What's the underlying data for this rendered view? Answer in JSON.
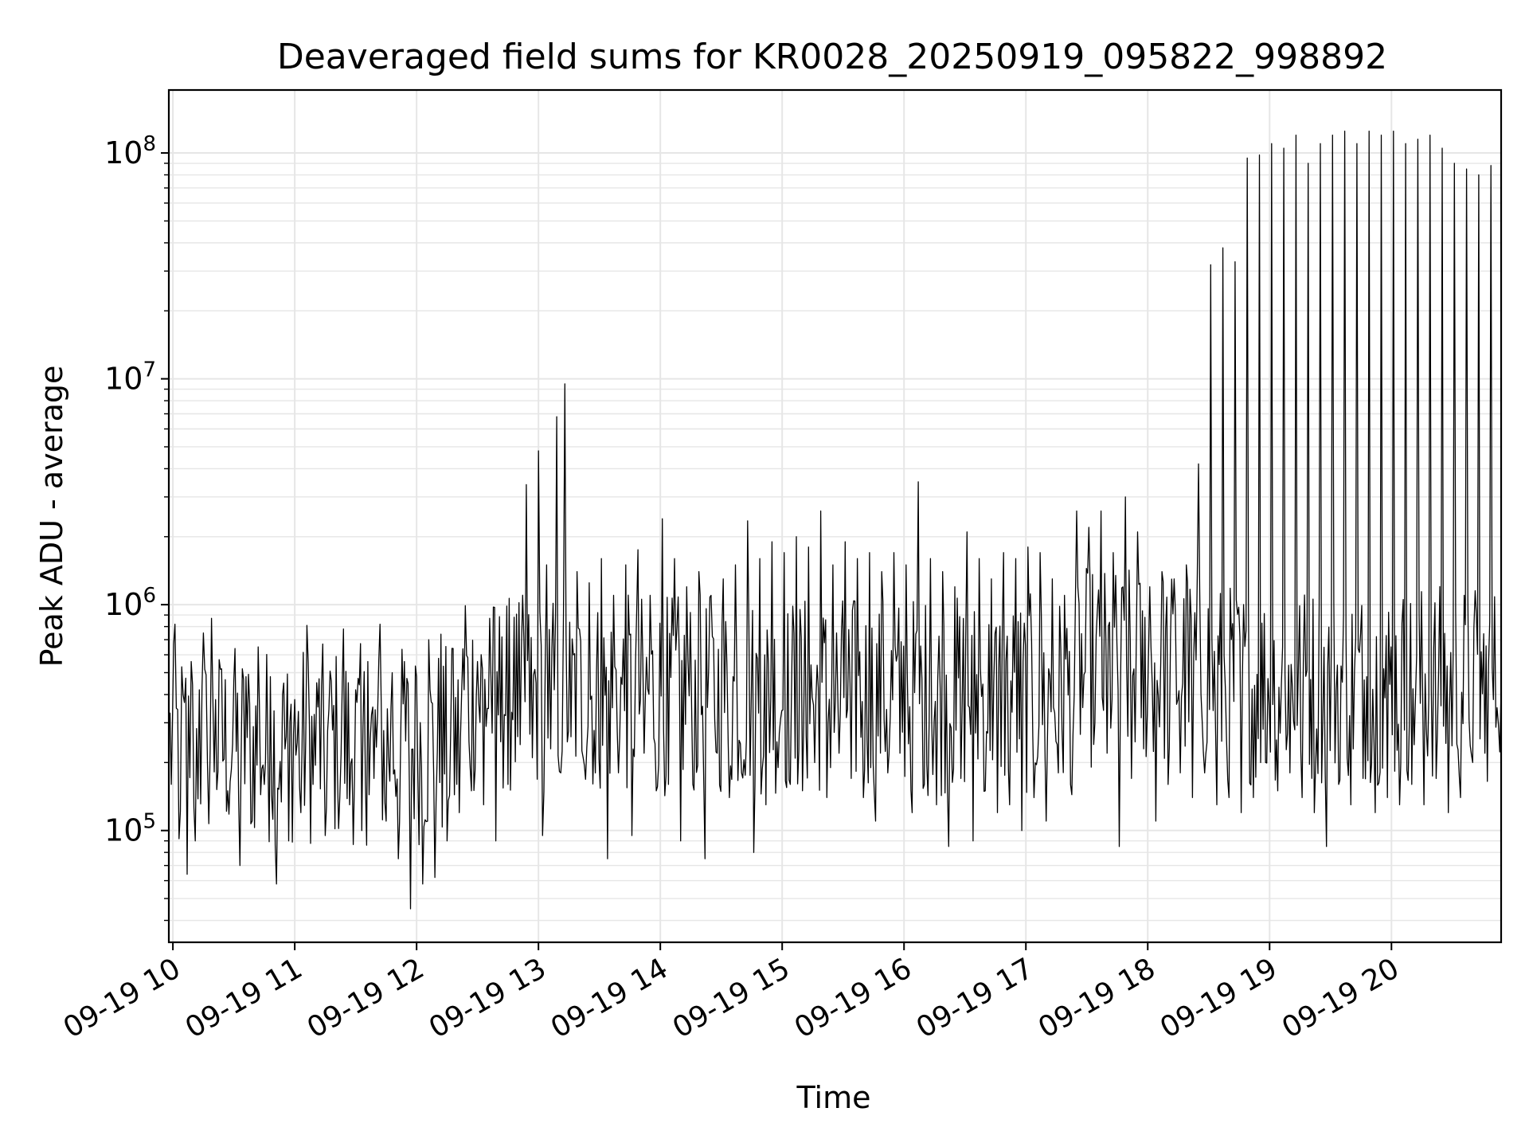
{
  "chart_data": {
    "type": "line",
    "title": "Deaveraged field sums for KR0028_20250919_095822_998892",
    "xlabel": "Time",
    "ylabel": "Peak ADU - average",
    "yscale": "log",
    "ylim": [
      32000,
      190000000
    ],
    "xlim": [
      "2025-09-19 09:58",
      "2025-09-19 20:54"
    ],
    "grid": true,
    "line_color": "#000000",
    "x_ticks": [
      "09-19 10",
      "09-19 11",
      "09-19 12",
      "09-19 13",
      "09-19 14",
      "09-19 15",
      "09-19 16",
      "09-19 17",
      "09-19 18",
      "09-19 19",
      "09-19 20"
    ],
    "y_ticks": [
      {
        "base": "10",
        "exp": "5",
        "value": 100000
      },
      {
        "base": "10",
        "exp": "6",
        "value": 1000000
      },
      {
        "base": "10",
        "exp": "7",
        "value": 10000000
      },
      {
        "base": "10",
        "exp": "8",
        "value": 100000000
      }
    ],
    "series": [
      {
        "points": [
          [
            "09:58",
            300000
          ],
          [
            "10:01",
            820000
          ],
          [
            "10:03",
            92000
          ],
          [
            "10:05",
            400000
          ],
          [
            "10:07",
            64000
          ],
          [
            "10:09",
            560000
          ],
          [
            "10:11",
            90000
          ],
          [
            "10:13",
            420000
          ],
          [
            "10:15",
            750000
          ],
          [
            "10:17",
            200000
          ],
          [
            "10:19",
            870000
          ],
          [
            "10:21",
            380000
          ],
          [
            "10:24",
            520000
          ],
          [
            "10:27",
            150000
          ],
          [
            "10:30",
            460000
          ],
          [
            "10:33",
            70000
          ],
          [
            "10:36",
            480000
          ],
          [
            "10:39",
            110000
          ],
          [
            "10:42",
            650000
          ],
          [
            "10:45",
            160000
          ],
          [
            "10:48",
            480000
          ],
          [
            "10:51",
            58000
          ],
          [
            "10:54",
            400000
          ],
          [
            "10:57",
            90000
          ],
          [
            "11:00",
            380000
          ],
          [
            "11:03",
            120000
          ],
          [
            "11:06",
            810000
          ],
          [
            "11:09",
            160000
          ],
          [
            "11:12",
            470000
          ],
          [
            "11:15",
            95000
          ],
          [
            "11:18",
            460000
          ],
          [
            "11:21",
            180000
          ],
          [
            "11:24",
            780000
          ],
          [
            "11:27",
            130000
          ],
          [
            "11:30",
            420000
          ],
          [
            "11:33",
            100000
          ],
          [
            "11:36",
            560000
          ],
          [
            "11:39",
            170000
          ],
          [
            "11:42",
            820000
          ],
          [
            "11:45",
            110000
          ],
          [
            "11:48",
            500000
          ],
          [
            "11:51",
            75000
          ],
          [
            "11:54",
            560000
          ],
          [
            "11:57",
            45000
          ],
          [
            "12:00",
            480000
          ],
          [
            "12:03",
            58000
          ],
          [
            "12:06",
            700000
          ],
          [
            "12:09",
            62000
          ],
          [
            "12:12",
            740000
          ],
          [
            "12:15",
            90000
          ],
          [
            "12:18",
            640000
          ],
          [
            "12:21",
            120000
          ],
          [
            "12:24",
            990000
          ],
          [
            "12:27",
            150000
          ],
          [
            "12:30",
            560000
          ],
          [
            "12:33",
            130000
          ],
          [
            "12:36",
            870000
          ],
          [
            "12:39",
            90000
          ],
          [
            "12:42",
            720000
          ],
          [
            "12:45",
            160000
          ],
          [
            "12:48",
            880000
          ],
          [
            "12:51",
            240000
          ],
          [
            "12:54",
            3400000
          ],
          [
            "12:57",
            210000
          ],
          [
            "13:00",
            4800000
          ],
          [
            "13:02",
            95000
          ],
          [
            "13:04",
            1500000
          ],
          [
            "13:06",
            230000
          ],
          [
            "13:09",
            6800000
          ],
          [
            "13:11",
            180000
          ],
          [
            "13:13",
            9500000
          ],
          [
            "13:16",
            260000
          ],
          [
            "13:19",
            1400000
          ],
          [
            "13:22",
            210000
          ],
          [
            "13:25",
            1250000
          ],
          [
            "13:28",
            180000
          ],
          [
            "13:31",
            1600000
          ],
          [
            "13:34",
            75000
          ],
          [
            "13:37",
            1100000
          ],
          [
            "13:40",
            260000
          ],
          [
            "13:43",
            1500000
          ],
          [
            "13:46",
            95000
          ],
          [
            "13:49",
            1750000
          ],
          [
            "13:52",
            220000
          ],
          [
            "13:55",
            1100000
          ],
          [
            "13:58",
            150000
          ],
          [
            "14:01",
            2400000
          ],
          [
            "14:04",
            160000
          ],
          [
            "14:07",
            1600000
          ],
          [
            "14:10",
            90000
          ],
          [
            "14:13",
            1200000
          ],
          [
            "14:16",
            160000
          ],
          [
            "14:19",
            1400000
          ],
          [
            "14:22",
            75000
          ],
          [
            "14:25",
            1100000
          ],
          [
            "14:28",
            220000
          ],
          [
            "14:31",
            1300000
          ],
          [
            "14:34",
            140000
          ],
          [
            "14:37",
            1500000
          ],
          [
            "14:40",
            180000
          ],
          [
            "14:43",
            2350000
          ],
          [
            "14:46",
            80000
          ],
          [
            "14:49",
            1600000
          ],
          [
            "14:52",
            130000
          ],
          [
            "14:55",
            1900000
          ],
          [
            "14:58",
            190000
          ],
          [
            "15:01",
            1700000
          ],
          [
            "15:04",
            160000
          ],
          [
            "15:07",
            2000000
          ],
          [
            "15:10",
            150000
          ],
          [
            "15:13",
            1800000
          ],
          [
            "15:16",
            200000
          ],
          [
            "15:19",
            2600000
          ],
          [
            "15:22",
            140000
          ],
          [
            "15:25",
            1500000
          ],
          [
            "15:28",
            220000
          ],
          [
            "15:31",
            1900000
          ],
          [
            "15:34",
            170000
          ],
          [
            "15:37",
            1600000
          ],
          [
            "15:40",
            140000
          ],
          [
            "15:43",
            1700000
          ],
          [
            "15:46",
            110000
          ],
          [
            "15:49",
            1400000
          ],
          [
            "15:52",
            180000
          ],
          [
            "15:55",
            1700000
          ],
          [
            "15:58",
            220000
          ],
          [
            "16:01",
            1500000
          ],
          [
            "16:04",
            120000
          ],
          [
            "16:07",
            3500000
          ],
          [
            "16:10",
            160000
          ],
          [
            "16:13",
            1600000
          ],
          [
            "16:16",
            130000
          ],
          [
            "16:19",
            1400000
          ],
          [
            "16:22",
            85000
          ],
          [
            "16:25",
            1200000
          ],
          [
            "16:28",
            170000
          ],
          [
            "16:31",
            2100000
          ],
          [
            "16:34",
            90000
          ],
          [
            "16:37",
            1600000
          ],
          [
            "16:40",
            150000
          ],
          [
            "16:43",
            1300000
          ],
          [
            "16:46",
            120000
          ],
          [
            "16:49",
            1700000
          ],
          [
            "16:52",
            130000
          ],
          [
            "16:55",
            1600000
          ],
          [
            "16:58",
            100000
          ],
          [
            "17:01",
            1800000
          ],
          [
            "17:04",
            140000
          ],
          [
            "17:07",
            1700000
          ],
          [
            "17:10",
            110000
          ],
          [
            "17:13",
            1300000
          ],
          [
            "17:16",
            180000
          ],
          [
            "17:19",
            1100000
          ],
          [
            "17:22",
            160000
          ],
          [
            "17:25",
            2600000
          ],
          [
            "17:28",
            350000
          ],
          [
            "17:31",
            2200000
          ],
          [
            "17:34",
            300000
          ],
          [
            "17:37",
            2600000
          ],
          [
            "17:40",
            220000
          ],
          [
            "17:43",
            1700000
          ],
          [
            "17:46",
            85000
          ],
          [
            "17:49",
            3000000
          ],
          [
            "17:52",
            170000
          ],
          [
            "17:55",
            2100000
          ],
          [
            "17:58",
            230000
          ],
          [
            "18:01",
            1200000
          ],
          [
            "18:04",
            110000
          ],
          [
            "18:07",
            1400000
          ],
          [
            "18:10",
            160000
          ],
          [
            "18:13",
            1300000
          ],
          [
            "18:16",
            180000
          ],
          [
            "18:19",
            1500000
          ],
          [
            "18:22",
            140000
          ],
          [
            "18:25",
            4200000
          ],
          [
            "18:28",
            180000
          ],
          [
            "18:31",
            32000000
          ],
          [
            "18:34",
            130000
          ],
          [
            "18:37",
            38000000
          ],
          [
            "18:40",
            140000
          ],
          [
            "18:43",
            33000000
          ],
          [
            "18:46",
            120000
          ],
          [
            "18:49",
            95000000
          ],
          [
            "18:52",
            140000
          ],
          [
            "18:55",
            98000000
          ],
          [
            "18:58",
            200000
          ],
          [
            "19:01",
            110000000
          ],
          [
            "19:04",
            150000
          ],
          [
            "19:07",
            105000000
          ],
          [
            "19:10",
            180000
          ],
          [
            "19:13",
            120000000
          ],
          [
            "19:16",
            140000
          ],
          [
            "19:19",
            90000000
          ],
          [
            "19:22",
            120000
          ],
          [
            "19:25",
            110000000
          ],
          [
            "19:28",
            85000
          ],
          [
            "19:31",
            120000000
          ],
          [
            "19:34",
            160000
          ],
          [
            "19:37",
            125000000
          ],
          [
            "19:40",
            130000
          ],
          [
            "19:43",
            110000000
          ],
          [
            "19:46",
            170000
          ],
          [
            "19:49",
            125000000
          ],
          [
            "19:52",
            120000
          ],
          [
            "19:55",
            120000000
          ],
          [
            "19:58",
            140000
          ],
          [
            "20:01",
            125000000
          ],
          [
            "20:04",
            130000
          ],
          [
            "20:07",
            110000000
          ],
          [
            "20:10",
            160000
          ],
          [
            "20:13",
            115000000
          ],
          [
            "20:16",
            130000
          ],
          [
            "20:19",
            120000000
          ],
          [
            "20:22",
            170000
          ],
          [
            "20:25",
            105000000
          ],
          [
            "20:28",
            120000
          ],
          [
            "20:31",
            90000000
          ],
          [
            "20:34",
            140000
          ],
          [
            "20:37",
            85000000
          ],
          [
            "20:40",
            200000
          ],
          [
            "20:43",
            80000000
          ],
          [
            "20:46",
            220000
          ],
          [
            "20:49",
            88000000
          ],
          [
            "20:52",
            350000
          ],
          [
            "20:54",
            420000
          ]
        ]
      }
    ]
  }
}
